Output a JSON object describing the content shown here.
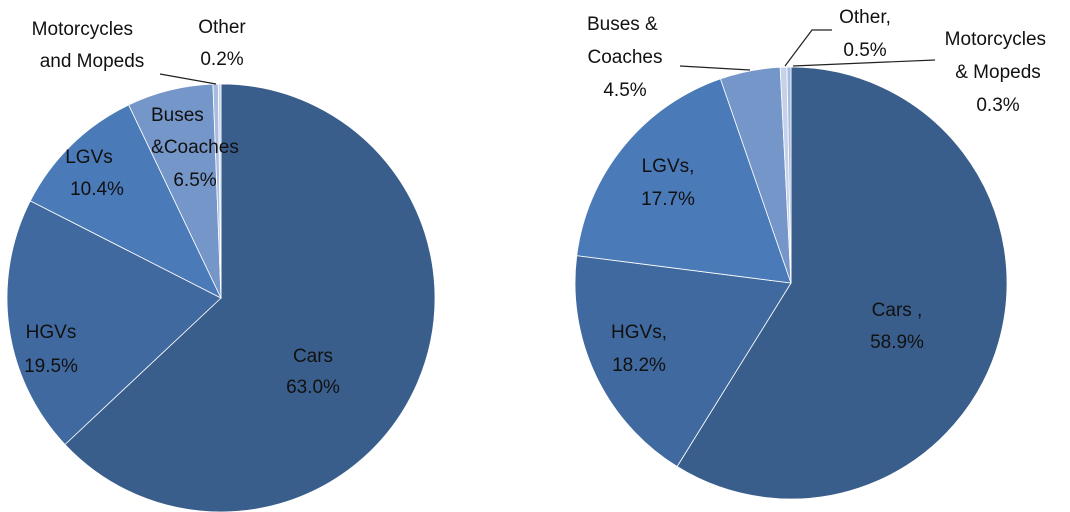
{
  "chart_data": [
    {
      "type": "pie",
      "categories": [
        "Cars",
        "HGVs",
        "LGVs",
        "Buses &Coaches",
        "Motorcycles and Mopeds",
        "Other"
      ],
      "values": [
        63.0,
        19.5,
        10.4,
        6.5,
        0.4,
        0.2
      ],
      "value_labels": [
        "63.0%",
        "19.5%",
        "10.4%",
        "6.5%",
        null,
        "0.2%"
      ],
      "colors": [
        "#3a5e8c",
        "#40699f",
        "#4a7ab8",
        "#7596c8",
        "#a7bce0",
        "#c5d2ea"
      ]
    },
    {
      "type": "pie",
      "categories": [
        "Cars ,",
        "HGVs,",
        "LGVs,",
        "Buses & Coaches",
        "Other,",
        "Motorcycles & Mopeds"
      ],
      "values": [
        58.9,
        18.2,
        17.7,
        4.5,
        0.5,
        0.3
      ],
      "value_labels": [
        "58.9%",
        "18.2%",
        "17.7%",
        "4.5%",
        "0.5%",
        "0.3%"
      ],
      "colors": [
        "#3a5e8c",
        "#40699f",
        "#4a7ab8",
        "#7596c8",
        "#c5d2ea",
        "#a7bce0"
      ]
    }
  ]
}
